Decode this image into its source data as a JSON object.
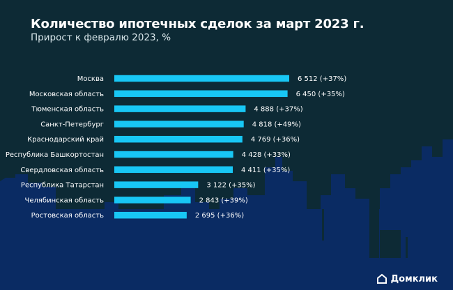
{
  "title": "Количество ипотечных сделок за март 2023 г.",
  "subtitle": "Прирост к февралю 2023, %",
  "brand": "Домклик",
  "colors": {
    "bar": "#18c7f5",
    "background_top": "#0d2a35",
    "background_bottom": "#0a2b63"
  },
  "chart_data": {
    "type": "bar",
    "orientation": "horizontal",
    "categories": [
      "Москва",
      "Московская область",
      "Тюменская область",
      "Санкт-Петербург",
      "Краснодарский край",
      "Республика Башкортостан",
      "Свердловская область",
      "Республика Татарстан",
      "Челябинская область",
      "Ростовская область"
    ],
    "values": [
      6512,
      6450,
      4888,
      4818,
      4769,
      4428,
      4411,
      3122,
      2843,
      2695
    ],
    "labels": [
      "6 512 (+37%)",
      "6 450 (+35%)",
      "4 888 (+37%)",
      "4 818 (+49%)",
      "4 769 (+36%)",
      "4 428 (+33%)",
      "4 411 (+35%)",
      "3 122 (+35%)",
      "2 843 (+39%)",
      "2 695 (+36%)"
    ],
    "growth_pct": [
      37,
      35,
      37,
      49,
      36,
      33,
      35,
      35,
      39,
      36
    ],
    "title": "Количество ипотечных сделок за март 2023 г.",
    "subtitle": "Прирост к февралю 2023, %",
    "xlim": [
      0,
      6512
    ],
    "grid": false,
    "legend": "none"
  }
}
